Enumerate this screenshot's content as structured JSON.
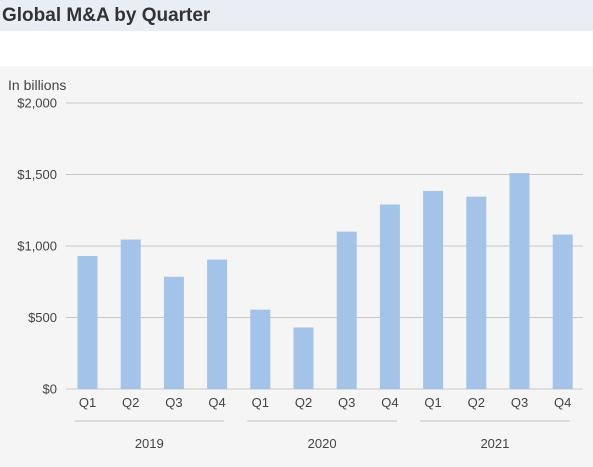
{
  "header": {
    "title": "Global M&A by Quarter"
  },
  "chart_data": {
    "type": "bar",
    "title": "Global M&A by Quarter",
    "unit_label": "In billions",
    "ylabel": "",
    "xlabel": "",
    "ylim": [
      0,
      2000
    ],
    "yticks": [
      {
        "value": 0,
        "label": "$0"
      },
      {
        "value": 500,
        "label": "$500"
      },
      {
        "value": 1000,
        "label": "$1,000"
      },
      {
        "value": 1500,
        "label": "$1,500"
      },
      {
        "value": 2000,
        "label": "$2,000"
      }
    ],
    "grid": true,
    "bar_color": "#a3c4e8",
    "grid_color": "#c8c8c8",
    "groups": [
      {
        "label": "2019",
        "quarters": [
          "Q1",
          "Q2",
          "Q3",
          "Q4"
        ],
        "values": [
          930,
          1045,
          785,
          905
        ]
      },
      {
        "label": "2020",
        "quarters": [
          "Q1",
          "Q2",
          "Q3",
          "Q4"
        ],
        "values": [
          555,
          430,
          1100,
          1290
        ]
      },
      {
        "label": "2021",
        "quarters": [
          "Q1",
          "Q2",
          "Q3",
          "Q4"
        ],
        "values": [
          1385,
          1345,
          1510,
          1080
        ]
      }
    ]
  }
}
